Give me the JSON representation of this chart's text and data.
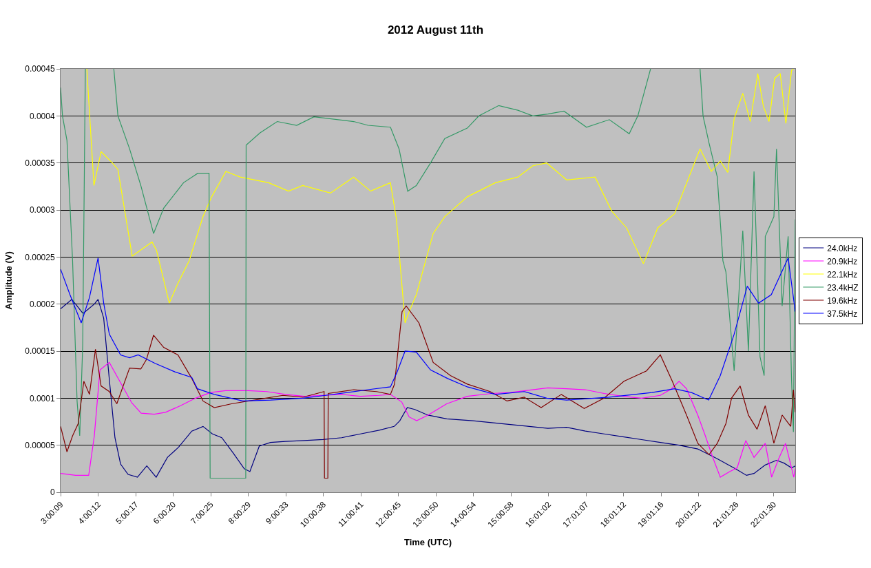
{
  "chart_data": {
    "type": "line",
    "title": "2012 August 11th",
    "xlabel": "Time (UTC)",
    "ylabel": "Amplitude (V)",
    "xlim": [
      3.0,
      22.6
    ],
    "xticks": [
      {
        "value": 3.0025,
        "label": "3:00:09"
      },
      {
        "value": 4.0033,
        "label": "4:00:12"
      },
      {
        "value": 5.0047,
        "label": "5:00:17"
      },
      {
        "value": 6.0056,
        "label": "6:00:20"
      },
      {
        "value": 7.0069,
        "label": "7:00:25"
      },
      {
        "value": 8.0081,
        "label": "8:00:29"
      },
      {
        "value": 9.0092,
        "label": "9:00:33"
      },
      {
        "value": 10.0106,
        "label": "10:00:38"
      },
      {
        "value": 11.0114,
        "label": "11:00:41"
      },
      {
        "value": 12.0125,
        "label": "12:00:45"
      },
      {
        "value": 13.0139,
        "label": "13:00:50"
      },
      {
        "value": 14.015,
        "label": "14:00:54"
      },
      {
        "value": 15.0161,
        "label": "15:00:58"
      },
      {
        "value": 16.0172,
        "label": "16:01:02"
      },
      {
        "value": 17.0186,
        "label": "17:01:07"
      },
      {
        "value": 18.02,
        "label": "18:01:12"
      },
      {
        "value": 19.0211,
        "label": "19:01:16"
      },
      {
        "value": 20.0228,
        "label": "20:01:22"
      },
      {
        "value": 21.0239,
        "label": "21:01:26"
      },
      {
        "value": 22.025,
        "label": "22:01:30"
      }
    ],
    "ylim": [
      0,
      0.00045
    ],
    "yticks": [
      0,
      {
        "value": 5e-05,
        "label": "0.00005"
      },
      0.0001,
      0.00015,
      0.0002,
      0.00025,
      0.0003,
      0.00035,
      0.0004,
      0.00045
    ],
    "grid": "y",
    "legend": "right",
    "series": [
      {
        "name": "24.0kHz",
        "color": "#000080",
        "x": [
          3.0,
          3.3,
          3.6,
          3.9,
          4.0,
          4.15,
          4.3,
          4.45,
          4.6,
          4.8,
          5.05,
          5.3,
          5.55,
          5.85,
          6.15,
          6.5,
          6.8,
          7.05,
          7.3,
          7.6,
          7.9,
          8.05,
          8.3,
          8.6,
          9.0,
          9.5,
          10.0,
          10.5,
          11.0,
          11.5,
          11.9,
          12.05,
          12.25,
          12.45,
          12.8,
          13.3,
          14.0,
          14.5,
          15.0,
          15.5,
          16.0,
          16.5,
          17.0,
          17.5,
          18.0,
          18.5,
          19.0,
          19.5,
          20.0,
          20.5,
          21.0,
          21.3,
          21.5,
          21.8,
          22.1,
          22.3,
          22.5,
          22.6
        ],
        "values": [
          0.000195,
          0.000205,
          0.00019,
          0.0002,
          0.000205,
          0.000185,
          0.00012,
          5.8e-05,
          3e-05,
          1.9e-05,
          1.6e-05,
          2.8e-05,
          1.6e-05,
          3.7e-05,
          4.8e-05,
          6.5e-05,
          7e-05,
          6.2e-05,
          5.8e-05,
          4.2e-05,
          2.5e-05,
          2.2e-05,
          4.9e-05,
          5.3e-05,
          5.4e-05,
          5.5e-05,
          5.6e-05,
          5.8e-05,
          6.2e-05,
          6.6e-05,
          7e-05,
          7.6e-05,
          9e-05,
          8.8e-05,
          8.2e-05,
          7.8e-05,
          7.6e-05,
          7.4e-05,
          7.2e-05,
          7e-05,
          6.8e-05,
          6.9e-05,
          6.5e-05,
          6.2e-05,
          5.9e-05,
          5.6e-05,
          5.3e-05,
          5e-05,
          4.6e-05,
          3.6e-05,
          2.5e-05,
          1.8e-05,
          2e-05,
          2.9e-05,
          3.4e-05,
          3.1e-05,
          2.6e-05,
          2.8e-05
        ]
      },
      {
        "name": "20.9kHz",
        "color": "#ff00ff",
        "x": [
          3.0,
          3.4,
          3.75,
          3.9,
          4.05,
          4.3,
          4.55,
          4.9,
          5.15,
          5.5,
          5.8,
          6.2,
          6.6,
          7.0,
          7.4,
          8.0,
          8.5,
          9.0,
          9.5,
          10.0,
          10.5,
          11.0,
          11.5,
          11.8,
          12.1,
          12.3,
          12.5,
          12.8,
          13.3,
          13.85,
          14.5,
          15.0,
          15.4,
          16.0,
          16.5,
          17.0,
          17.5,
          18.0,
          18.5,
          19.0,
          19.3,
          19.5,
          19.7,
          20.0,
          20.2,
          20.4,
          20.6,
          20.85,
          21.05,
          21.28,
          21.5,
          21.8,
          21.97,
          22.15,
          22.34,
          22.56,
          22.6
        ],
        "values": [
          2e-05,
          1.8e-05,
          1.8e-05,
          6e-05,
          0.00013,
          0.000138,
          0.00012,
          9.5e-05,
          8.4e-05,
          8.3e-05,
          8.5e-05,
          9.2e-05,
          0.0001,
          0.000106,
          0.000108,
          0.000108,
          0.000107,
          0.000104,
          0.000102,
          0.000103,
          0.000104,
          0.000102,
          0.000103,
          0.000104,
          9.6e-05,
          8e-05,
          7.6e-05,
          8.2e-05,
          9.4e-05,
          0.000102,
          0.000105,
          0.000106,
          0.000108,
          0.000111,
          0.00011,
          0.000109,
          0.000105,
          0.000102,
          0.0001,
          0.000103,
          0.00011,
          0.000118,
          0.00011,
          8.2e-05,
          6e-05,
          3.7e-05,
          1.6e-05,
          2.2e-05,
          2.6e-05,
          5.5e-05,
          3.7e-05,
          5.2e-05,
          1.6e-05,
          3.5e-05,
          5.2e-05,
          1.6e-05,
          2.5e-05
        ]
      },
      {
        "name": "22.1kHz",
        "color": "#ffff00",
        "x": [
          3.7,
          3.89,
          4.08,
          4.38,
          4.53,
          4.91,
          5.44,
          5.56,
          5.9,
          6.13,
          6.43,
          6.8,
          7.03,
          7.41,
          7.79,
          8.55,
          9.08,
          9.46,
          10.2,
          10.82,
          11.27,
          11.8,
          11.96,
          12.19,
          12.3,
          12.49,
          12.94,
          13.25,
          13.85,
          14.6,
          15.2,
          15.6,
          15.97,
          16.5,
          17.26,
          17.7,
          18.1,
          18.55,
          18.93,
          19.38,
          20.06,
          20.36,
          20.6,
          20.8,
          20.97,
          21.2,
          21.4,
          21.6,
          21.75,
          21.9,
          22.05,
          22.2,
          22.35,
          22.5,
          22.55
        ],
        "values": [
          0.00045,
          0.000326,
          0.000362,
          0.00035,
          0.000343,
          0.000251,
          0.000266,
          0.000257,
          0.000201,
          0.000222,
          0.000246,
          0.000293,
          0.000314,
          0.000341,
          0.000335,
          0.000329,
          0.00032,
          0.000326,
          0.000318,
          0.000335,
          0.00032,
          0.000329,
          0.00029,
          0.00018,
          0.000192,
          0.00021,
          0.000275,
          0.000293,
          0.000314,
          0.000329,
          0.000335,
          0.000347,
          0.00035,
          0.000332,
          0.000335,
          0.000299,
          0.000281,
          0.000243,
          0.000281,
          0.000296,
          0.000365,
          0.000341,
          0.000352,
          0.00034,
          0.000397,
          0.000424,
          0.000394,
          0.000445,
          0.00041,
          0.000394,
          0.00044,
          0.000445,
          0.000392,
          0.000448,
          0.00045
        ]
      },
      {
        "name": "23.4kHZ",
        "color": "#339966",
        "x": [
          3.0,
          3.05,
          3.17,
          3.32,
          3.44,
          3.51,
          3.59,
          3.66,
          3.9,
          4.42,
          4.53,
          4.84,
          5.14,
          5.48,
          5.75,
          6.28,
          6.66,
          6.96,
          6.99,
          7.94,
          7.95,
          8.32,
          8.78,
          9.3,
          9.76,
          10.82,
          11.2,
          11.8,
          12.03,
          12.26,
          12.49,
          12.87,
          13.25,
          13.85,
          14.16,
          14.69,
          15.2,
          15.6,
          16.0,
          16.43,
          17.03,
          17.64,
          18.17,
          18.4,
          18.74,
          19.4,
          20.06,
          20.14,
          20.3,
          20.52,
          20.67,
          20.75,
          20.97,
          21.2,
          21.35,
          21.5,
          21.66,
          21.77,
          21.8,
          22.03,
          22.1,
          22.25,
          22.41,
          22.5,
          22.55,
          22.6
        ],
        "values": [
          0.00043,
          0.0004,
          0.000374,
          0.000246,
          9.7e-05,
          6e-05,
          0.000156,
          0.00045,
          null,
          0.00045,
          0.0004,
          0.000365,
          0.000326,
          0.000275,
          0.000302,
          0.000329,
          0.000339,
          0.000339,
          1.5e-05,
          1.5e-05,
          0.000369,
          0.000382,
          0.000394,
          0.00039,
          0.000399,
          0.000394,
          0.00039,
          0.000388,
          0.000365,
          0.00032,
          0.000326,
          0.00035,
          0.000376,
          0.000387,
          0.0004,
          0.000411,
          0.000406,
          0.0004,
          0.000402,
          0.000405,
          0.000388,
          0.000396,
          0.000381,
          0.0004,
          0.00045,
          null,
          0.00045,
          0.0004,
          0.000371,
          0.000335,
          0.000246,
          0.000234,
          0.000129,
          0.000278,
          0.00015,
          0.000341,
          0.000144,
          0.000124,
          0.000272,
          0.000293,
          0.000365,
          0.000198,
          0.000272,
          0.00012,
          6.4e-05,
          0.00029
        ]
      },
      {
        "name": "19.6kHz",
        "color": "#800000",
        "x": [
          3.0,
          3.17,
          3.32,
          3.47,
          3.62,
          3.77,
          3.93,
          4.08,
          4.3,
          4.5,
          4.84,
          5.14,
          5.29,
          5.48,
          5.75,
          6.13,
          6.5,
          6.8,
          7.1,
          7.56,
          8.47,
          8.93,
          9.46,
          10.03,
          10.04,
          10.13,
          10.14,
          10.82,
          11.43,
          11.8,
          11.91,
          12.11,
          12.22,
          12.56,
          12.94,
          13.4,
          13.85,
          14.46,
          14.91,
          15.37,
          15.82,
          16.36,
          16.97,
          17.5,
          18.03,
          18.63,
          19.0,
          19.32,
          19.7,
          20.0,
          20.3,
          20.52,
          20.75,
          20.9,
          21.13,
          21.35,
          21.58,
          21.8,
          22.03,
          22.25,
          22.48,
          22.55,
          22.6
        ],
        "values": [
          7e-05,
          4.3e-05,
          6e-05,
          7.3e-05,
          0.000118,
          0.000104,
          0.000152,
          0.000113,
          0.000107,
          9.4e-05,
          0.000132,
          0.000131,
          0.000141,
          0.000167,
          0.000154,
          0.000146,
          0.000121,
          9.7e-05,
          9e-05,
          9.4e-05,
          0.0001,
          0.000103,
          0.000101,
          0.000107,
          1.5e-05,
          1.5e-05,
          0.000105,
          0.000109,
          0.000107,
          0.000104,
          0.000115,
          0.000192,
          0.000198,
          0.00018,
          0.000138,
          0.000124,
          0.000115,
          0.000107,
          9.7e-05,
          0.000101,
          9e-05,
          0.000104,
          8.9e-05,
          0.0001,
          0.000118,
          0.000129,
          0.000146,
          0.000118,
          8.2e-05,
          5.2e-05,
          4e-05,
          5.2e-05,
          7.3e-05,
          0.0001,
          0.000113,
          8.2e-05,
          6.7e-05,
          9.2e-05,
          5.2e-05,
          8.2e-05,
          7e-05,
          0.000109,
          8.5e-05
        ]
      },
      {
        "name": "37.5kHz",
        "color": "#0000ff",
        "x": [
          3.0,
          3.25,
          3.55,
          3.77,
          4.0,
          4.15,
          4.3,
          4.6,
          4.84,
          5.07,
          5.52,
          6.05,
          6.5,
          6.65,
          7.1,
          7.86,
          8.6,
          9.46,
          10.07,
          11.2,
          11.8,
          11.98,
          12.19,
          12.49,
          12.87,
          13.32,
          13.85,
          14.6,
          15.37,
          15.97,
          16.5,
          17.64,
          18.78,
          19.38,
          19.83,
          20.29,
          20.6,
          20.97,
          21.32,
          21.62,
          21.96,
          22.41,
          22.6
        ],
        "values": [
          0.000237,
          0.00021,
          0.00018,
          0.000207,
          0.000249,
          0.000201,
          0.000168,
          0.000146,
          0.000143,
          0.000146,
          0.000137,
          0.000128,
          0.000122,
          0.00011,
          0.000104,
          9.7e-05,
          9.8e-05,
          0.0001,
          0.000103,
          0.000109,
          0.000112,
          0.000128,
          0.00015,
          0.000149,
          0.00013,
          0.000121,
          0.000112,
          0.000104,
          0.000107,
          0.0001,
          9.8e-05,
          0.000101,
          0.000106,
          0.00011,
          0.000106,
          9.8e-05,
          0.000124,
          0.000168,
          0.000219,
          0.000201,
          0.00021,
          0.000249,
          0.000192
        ]
      }
    ]
  }
}
